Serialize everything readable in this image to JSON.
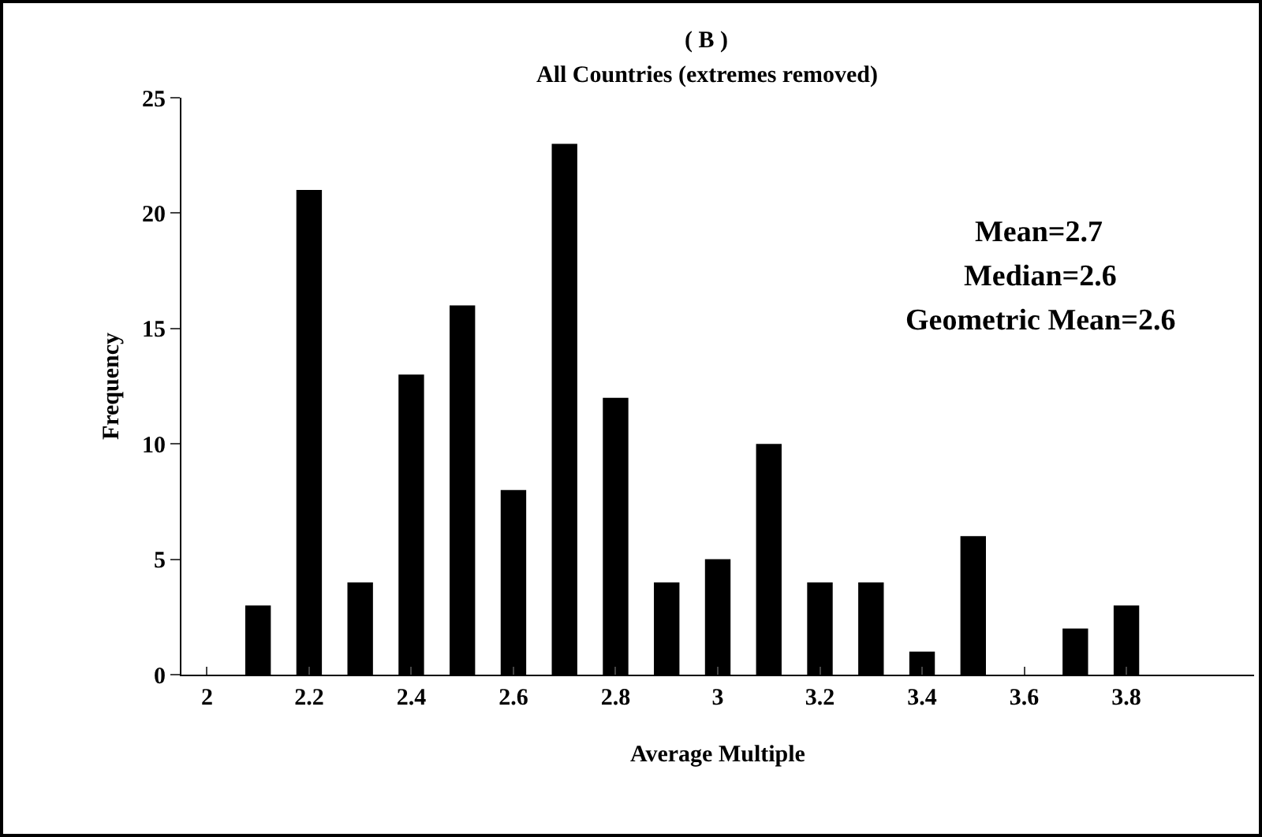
{
  "chart_data": {
    "type": "bar",
    "title": "( B )",
    "subtitle": "All Countries (extremes removed)",
    "xlabel": "Average Multiple",
    "ylabel": "Frequency",
    "x": [
      2.1,
      2.2,
      2.3,
      2.4,
      2.5,
      2.6,
      2.7,
      2.8,
      2.9,
      3.0,
      3.1,
      3.2,
      3.3,
      3.4,
      3.5,
      3.7,
      3.8
    ],
    "values": [
      3,
      21,
      4,
      13,
      16,
      8,
      23,
      12,
      4,
      5,
      10,
      4,
      4,
      1,
      6,
      2,
      3
    ],
    "color": "#000000",
    "xlim": [
      1.95,
      4.05
    ],
    "xticks": [
      2,
      2.2,
      2.4,
      2.6,
      2.8,
      3,
      3.2,
      3.4,
      3.6,
      3.8
    ],
    "ylim": [
      0,
      25
    ],
    "yticks": [
      0,
      5,
      10,
      15,
      20,
      25
    ],
    "annotations": [
      "Mean=2.7",
      "Median=2.6",
      "Geometric Mean=2.6"
    ],
    "grid": false,
    "legend": false
  }
}
